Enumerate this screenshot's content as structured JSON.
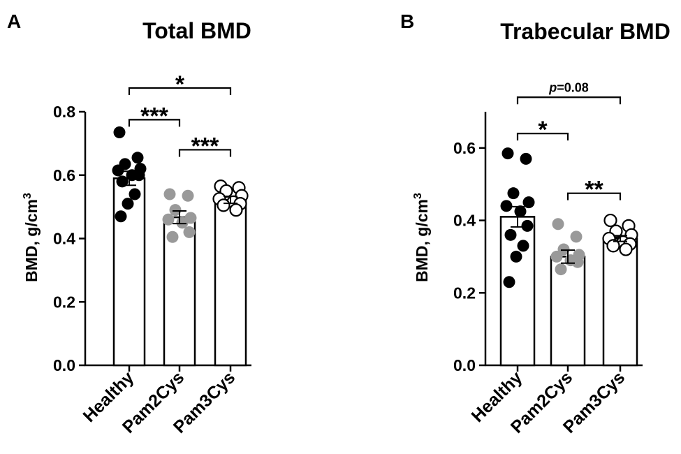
{
  "chart_data": [
    {
      "panel_label": "A",
      "type": "bar",
      "title": "Total BMD",
      "ylabel": "BMD, g/cm",
      "ylabel_sup": "3",
      "xlabel": "",
      "ylim": [
        0,
        0.8
      ],
      "yticks": [
        0.0,
        0.2,
        0.4,
        0.6,
        0.8
      ],
      "tick_labels": [
        "0.0",
        "0.2",
        "0.4",
        "0.6",
        "0.8"
      ],
      "categories": [
        "Healthy",
        "Pam2Cys",
        "Pam3Cys"
      ],
      "means": [
        0.59,
        0.467,
        0.522
      ],
      "sem": [
        0.022,
        0.02,
        0.011
      ],
      "points": [
        [
          0.735,
          0.655,
          0.635,
          0.62,
          0.615,
          0.6,
          0.6,
          0.58,
          0.54,
          0.51,
          0.47
        ],
        [
          0.54,
          0.535,
          0.49,
          0.465,
          0.46,
          0.45,
          0.42,
          0.405
        ],
        [
          0.565,
          0.56,
          0.55,
          0.535,
          0.525,
          0.515,
          0.51,
          0.505,
          0.49
        ]
      ],
      "brackets": [
        {
          "from": 0,
          "to": 1,
          "label": "***",
          "y": 0.775
        },
        {
          "from": 1,
          "to": 2,
          "label": "***",
          "y": 0.68
        },
        {
          "from": 0,
          "to": 2,
          "label": "*",
          "y": 0.875
        }
      ]
    },
    {
      "panel_label": "B",
      "type": "bar",
      "title": "Trabecular BMD",
      "ylabel": "BMD, g/cm",
      "ylabel_sup": "3",
      "xlabel": "",
      "ylim": [
        0,
        0.7
      ],
      "yticks": [
        0.0,
        0.2,
        0.4,
        0.6
      ],
      "tick_labels": [
        "0.0",
        "0.2",
        "0.4",
        "0.6"
      ],
      "categories": [
        "Healthy",
        "Pam2Cys",
        "Pam3Cys"
      ],
      "means": [
        0.41,
        0.3,
        0.35
      ],
      "sem": [
        0.028,
        0.018,
        0.008
      ],
      "points": [
        [
          0.585,
          0.57,
          0.475,
          0.45,
          0.44,
          0.425,
          0.385,
          0.36,
          0.33,
          0.3,
          0.23
        ],
        [
          0.39,
          0.355,
          0.32,
          0.305,
          0.3,
          0.29,
          0.285,
          0.265
        ],
        [
          0.4,
          0.385,
          0.37,
          0.36,
          0.35,
          0.34,
          0.335,
          0.33,
          0.32
        ]
      ],
      "brackets": [
        {
          "from": 0,
          "to": 1,
          "label": "*",
          "y": 0.64
        },
        {
          "from": 1,
          "to": 2,
          "label": "**",
          "y": 0.475
        },
        {
          "from": 0,
          "to": 2,
          "label": "p=0.08",
          "label_prefix_italic": "p",
          "label_rest": "=0.08",
          "y": 0.74
        }
      ]
    }
  ],
  "colors": {
    "axis": "#000000",
    "bar_fill": "#ffffff",
    "healthy": "#000000",
    "pam2cys": "#999999",
    "pam3cys_fill": "#ffffff",
    "pam3cys_edge": "#000000"
  }
}
